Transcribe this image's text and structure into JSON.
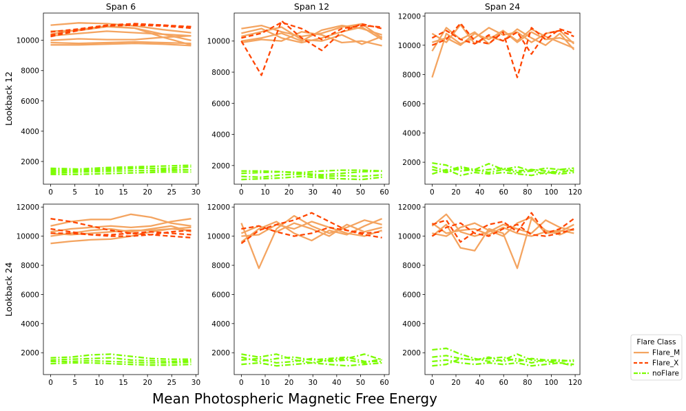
{
  "figure": {
    "xlabel": "Mean Photospheric Magnetic Free Energy",
    "row_labels": [
      "Lookback 12",
      "Lookback 24"
    ],
    "col_titles": [
      "Span 6",
      "Span 12",
      "Span 24"
    ]
  },
  "legend": {
    "title": "Flare Class",
    "placement": "lower-right-outside",
    "items": [
      {
        "label": "Flare_M",
        "color": "#f4a460",
        "style": "solid"
      },
      {
        "label": "Flare_X",
        "color": "#ff4500",
        "style": "dashed"
      },
      {
        "label": "noFlare",
        "color": "#7cfc00",
        "style": "dashdot"
      }
    ]
  },
  "chart_data": [
    {
      "type": "line",
      "row": 0,
      "col": 0,
      "title": "Span 6",
      "xlim": [
        -1.5,
        30.5
      ],
      "xticks": [
        0,
        5,
        10,
        15,
        20,
        25,
        30
      ],
      "ylim": [
        500,
        11800
      ],
      "yticks": [
        2000,
        4000,
        6000,
        8000,
        10000
      ],
      "x_max": 29,
      "series": [
        {
          "class": "Flare_M",
          "y": [
            11000,
            11150,
            11100,
            10950,
            10700,
            10500
          ]
        },
        {
          "class": "Flare_M",
          "y": [
            10600,
            10650,
            10900,
            10800,
            10400,
            10000
          ]
        },
        {
          "class": "Flare_M",
          "y": [
            10400,
            10700,
            10950,
            10800,
            10200,
            9700
          ]
        },
        {
          "class": "Flare_M",
          "y": [
            10300,
            10450,
            10600,
            10500,
            10400,
            10300
          ]
        },
        {
          "class": "Flare_M",
          "y": [
            10000,
            10100,
            10050,
            10050,
            10200,
            10300
          ]
        },
        {
          "class": "Flare_M",
          "y": [
            9850,
            9800,
            9850,
            9900,
            9850,
            9800
          ]
        },
        {
          "class": "Flare_M",
          "y": [
            9700,
            9700,
            9750,
            9800,
            9750,
            9650
          ]
        },
        {
          "class": "Flare_X",
          "y": [
            10350,
            10700,
            10950,
            11050,
            11000,
            10850
          ]
        },
        {
          "class": "Flare_X",
          "y": [
            10550,
            10750,
            11000,
            11100,
            11000,
            10900
          ]
        },
        {
          "class": "Flare_X",
          "y": [
            10250,
            10650,
            10950,
            11000,
            10950,
            10800
          ]
        },
        {
          "class": "noFlare",
          "y": [
            1450,
            1400,
            1450,
            1550,
            1550,
            1650
          ]
        },
        {
          "class": "noFlare",
          "y": [
            1350,
            1400,
            1500,
            1600,
            1500,
            1450
          ]
        },
        {
          "class": "noFlare",
          "y": [
            1250,
            1300,
            1350,
            1400,
            1400,
            1450
          ]
        },
        {
          "class": "noFlare",
          "y": [
            1150,
            1150,
            1200,
            1250,
            1300,
            1300
          ]
        },
        {
          "class": "noFlare",
          "y": [
            1550,
            1500,
            1600,
            1650,
            1700,
            1750
          ]
        }
      ]
    },
    {
      "type": "line",
      "row": 0,
      "col": 1,
      "title": "Span 12",
      "xlim": [
        -3,
        62
      ],
      "xticks": [
        0,
        10,
        20,
        30,
        40,
        50,
        60
      ],
      "ylim": [
        800,
        11800
      ],
      "yticks": [
        2000,
        4000,
        6000,
        8000,
        10000
      ],
      "x_max": 59,
      "series": [
        {
          "class": "Flare_M",
          "y": [
            10800,
            11000,
            10600,
            10300,
            10500,
            10900,
            11100,
            10200
          ]
        },
        {
          "class": "Flare_M",
          "y": [
            10300,
            10600,
            10900,
            10100,
            10000,
            10400,
            9800,
            10300
          ]
        },
        {
          "class": "Flare_M",
          "y": [
            10000,
            10200,
            10500,
            10000,
            10700,
            11000,
            10800,
            10400
          ]
        },
        {
          "class": "Flare_M",
          "y": [
            10500,
            10800,
            10200,
            9900,
            10200,
            10600,
            10900,
            10100
          ]
        },
        {
          "class": "Flare_M",
          "y": [
            9900,
            10100,
            10000,
            10600,
            10400,
            9900,
            10000,
            9700
          ]
        },
        {
          "class": "Flare_X",
          "y": [
            10000,
            7800,
            11300,
            10200,
            9400,
            10600,
            11100,
            10800
          ]
        },
        {
          "class": "Flare_X",
          "y": [
            10200,
            10500,
            11200,
            10800,
            10100,
            10800,
            11000,
            10900
          ]
        },
        {
          "class": "noFlare",
          "y": [
            1500,
            1550,
            1600,
            1500,
            1400,
            1500,
            1600,
            1650
          ]
        },
        {
          "class": "noFlare",
          "y": [
            1300,
            1250,
            1400,
            1450,
            1300,
            1350,
            1300,
            1400
          ]
        },
        {
          "class": "noFlare",
          "y": [
            1100,
            1150,
            1200,
            1300,
            1200,
            1150,
            1100,
            1250
          ]
        },
        {
          "class": "noFlare",
          "y": [
            1650,
            1650,
            1600,
            1550,
            1650,
            1700,
            1700,
            1650
          ]
        }
      ]
    },
    {
      "type": "line",
      "row": 0,
      "col": 2,
      "title": "Span 24",
      "xlim": [
        -6,
        124
      ],
      "xticks": [
        0,
        20,
        40,
        60,
        80,
        100,
        120
      ],
      "ylim": [
        500,
        12200
      ],
      "yticks": [
        2000,
        4000,
        6000,
        8000,
        10000,
        12000
      ],
      "x_max": 119,
      "series": [
        {
          "class": "Flare_M",
          "y": [
            9600,
            11200,
            10400,
            10900,
            10100,
            11000,
            10300,
            11100,
            10600,
            10200,
            9800
          ]
        },
        {
          "class": "Flare_M",
          "y": [
            7800,
            10800,
            10100,
            10500,
            11200,
            10700,
            10900,
            10200,
            10800,
            11000,
            10100
          ]
        },
        {
          "class": "Flare_M",
          "y": [
            10800,
            10200,
            11400,
            10100,
            10600,
            10300,
            11100,
            10500,
            10000,
            10800,
            9700
          ]
        },
        {
          "class": "Flare_M",
          "y": [
            10200,
            10500,
            10000,
            10800,
            10400,
            11000,
            10200,
            10900,
            10400,
            10500,
            10200
          ]
        },
        {
          "class": "Flare_X",
          "y": [
            10000,
            10400,
            11500,
            10300,
            10100,
            10900,
            7800,
            11200,
            10400,
            11100,
            10800
          ]
        },
        {
          "class": "Flare_X",
          "y": [
            10500,
            11000,
            10400,
            10100,
            10700,
            10300,
            10900,
            9400,
            10800,
            11000,
            10600
          ]
        },
        {
          "class": "noFlare",
          "y": [
            1950,
            1800,
            1400,
            1500,
            1900,
            1500,
            1300,
            1400,
            1200,
            1500,
            1400
          ]
        },
        {
          "class": "noFlare",
          "y": [
            1500,
            1300,
            1600,
            1400,
            1500,
            1600,
            1400,
            1500,
            1400,
            1300,
            1500
          ]
        },
        {
          "class": "noFlare",
          "y": [
            1200,
            1500,
            1100,
            1300,
            1200,
            1300,
            1200,
            1100,
            1300,
            1200,
            1300
          ]
        },
        {
          "class": "noFlare",
          "y": [
            1700,
            1400,
            1700,
            1500,
            1300,
            1500,
            1700,
            1400,
            1600,
            1500,
            1600
          ]
        }
      ]
    },
    {
      "type": "line",
      "row": 1,
      "col": 0,
      "xlim": [
        -1.5,
        30.5
      ],
      "xticks": [
        0,
        5,
        10,
        15,
        20,
        25,
        30
      ],
      "ylim": [
        500,
        12200
      ],
      "yticks": [
        2000,
        4000,
        6000,
        8000,
        10000,
        12000
      ],
      "x_max": 29,
      "series": [
        {
          "class": "Flare_M",
          "y": [
            10700,
            11000,
            11150,
            11150,
            11500,
            11300,
            10900,
            10700
          ]
        },
        {
          "class": "Flare_M",
          "y": [
            10300,
            10500,
            10600,
            10700,
            10600,
            10700,
            11000,
            11200
          ]
        },
        {
          "class": "Flare_M",
          "y": [
            10000,
            10200,
            10400,
            10500,
            10300,
            10500,
            10700,
            10300
          ]
        },
        {
          "class": "Flare_M",
          "y": [
            9500,
            9650,
            9750,
            9800,
            10000,
            10300,
            10500,
            10600
          ]
        },
        {
          "class": "Flare_M",
          "y": [
            10200,
            10100,
            10200,
            10300,
            10400,
            10400,
            10500,
            10400
          ]
        },
        {
          "class": "Flare_X",
          "y": [
            11200,
            11000,
            10700,
            10400,
            10200,
            10100,
            10000,
            9900
          ]
        },
        {
          "class": "Flare_X",
          "y": [
            10500,
            10300,
            10100,
            10000,
            10000,
            10100,
            10300,
            10400
          ]
        },
        {
          "class": "Flare_X",
          "y": [
            10200,
            10200,
            10100,
            10100,
            10200,
            10300,
            10200,
            10100
          ]
        },
        {
          "class": "noFlare",
          "y": [
            1650,
            1700,
            1850,
            1900,
            1750,
            1600,
            1550,
            1550
          ]
        },
        {
          "class": "noFlare",
          "y": [
            1500,
            1550,
            1600,
            1650,
            1500,
            1450,
            1400,
            1450
          ]
        },
        {
          "class": "noFlare",
          "y": [
            1400,
            1400,
            1450,
            1400,
            1350,
            1300,
            1300,
            1350
          ]
        },
        {
          "class": "noFlare",
          "y": [
            1250,
            1300,
            1300,
            1250,
            1200,
            1150,
            1150,
            1200
          ]
        }
      ]
    },
    {
      "type": "line",
      "row": 1,
      "col": 1,
      "xlim": [
        -3,
        62
      ],
      "xticks": [
        0,
        10,
        20,
        30,
        40,
        50,
        60
      ],
      "ylim": [
        500,
        12200
      ],
      "yticks": [
        2000,
        4000,
        6000,
        8000,
        10000,
        12000
      ],
      "x_max": 59,
      "series": [
        {
          "class": "Flare_M",
          "y": [
            10900,
            7800,
            10500,
            11400,
            10700,
            10200,
            10600,
            11100,
            10800
          ]
        },
        {
          "class": "Flare_M",
          "y": [
            9600,
            10500,
            11000,
            10200,
            9700,
            10400,
            10100,
            10700,
            11200
          ]
        },
        {
          "class": "Flare_M",
          "y": [
            10200,
            10700,
            10300,
            10900,
            10500,
            10000,
            10800,
            10300,
            10600
          ]
        },
        {
          "class": "Flare_M",
          "y": [
            10000,
            10100,
            10800,
            10500,
            11000,
            10600,
            10200,
            10000,
            10400
          ]
        },
        {
          "class": "Flare_X",
          "y": [
            9500,
            10400,
            10800,
            11100,
            11600,
            11000,
            10400,
            10100,
            9900
          ]
        },
        {
          "class": "Flare_X",
          "y": [
            10500,
            10700,
            10300,
            10000,
            10200,
            10600,
            10400,
            10200,
            10300
          ]
        },
        {
          "class": "noFlare",
          "y": [
            1900,
            1700,
            1900,
            1500,
            1300,
            1500,
            1600,
            1900,
            1500
          ]
        },
        {
          "class": "noFlare",
          "y": [
            1500,
            1600,
            1300,
            1400,
            1600,
            1400,
            1500,
            1300,
            1600
          ]
        },
        {
          "class": "noFlare",
          "y": [
            1200,
            1300,
            1100,
            1200,
            1300,
            1200,
            1100,
            1200,
            1300
          ]
        },
        {
          "class": "noFlare",
          "y": [
            1700,
            1400,
            1600,
            1700,
            1500,
            1600,
            1700,
            1400,
            1400
          ]
        }
      ]
    },
    {
      "type": "line",
      "row": 1,
      "col": 2,
      "xlim": [
        -6,
        124
      ],
      "xticks": [
        0,
        20,
        40,
        60,
        80,
        100,
        120
      ],
      "ylim": [
        500,
        12200
      ],
      "yticks": [
        2000,
        4000,
        6000,
        8000,
        10000,
        12000
      ],
      "x_max": 119,
      "series": [
        {
          "class": "Flare_M",
          "y": [
            10000,
            10800,
            9200,
            9000,
            10500,
            10200,
            7800,
            11200,
            10400,
            10100,
            10500
          ]
        },
        {
          "class": "Flare_M",
          "y": [
            10700,
            11500,
            10300,
            10000,
            10300,
            10800,
            10500,
            10200,
            11100,
            10600,
            10400
          ]
        },
        {
          "class": "Flare_M",
          "y": [
            10200,
            10000,
            10600,
            10900,
            10400,
            10000,
            10900,
            11300,
            10200,
            10300,
            10800
          ]
        },
        {
          "class": "Flare_M",
          "y": [
            10900,
            10200,
            10400,
            10500,
            10100,
            10600,
            10200,
            10000,
            10300,
            10400,
            10200
          ]
        },
        {
          "class": "Flare_X",
          "y": [
            10800,
            11100,
            9600,
            10300,
            10800,
            11000,
            10300,
            11600,
            10200,
            10500,
            11200
          ]
        },
        {
          "class": "Flare_X",
          "y": [
            10000,
            10600,
            10900,
            10200,
            10000,
            10500,
            10800,
            10100,
            10000,
            10200,
            10500
          ]
        },
        {
          "class": "noFlare",
          "y": [
            2200,
            2300,
            1900,
            1600,
            1400,
            1500,
            1900,
            1500,
            1400,
            1300,
            1200
          ]
        },
        {
          "class": "noFlare",
          "y": [
            1700,
            1800,
            1600,
            1500,
            1700,
            1400,
            1600,
            1300,
            1500,
            1400,
            1500
          ]
        },
        {
          "class": "noFlare",
          "y": [
            1400,
            1500,
            1300,
            1200,
            1300,
            1200,
            1300,
            1100,
            1200,
            1300,
            1100
          ]
        },
        {
          "class": "noFlare",
          "y": [
            1100,
            1200,
            1600,
            1500,
            1600,
            1700,
            1400,
            1600,
            1500,
            1500,
            1400
          ]
        }
      ]
    }
  ]
}
